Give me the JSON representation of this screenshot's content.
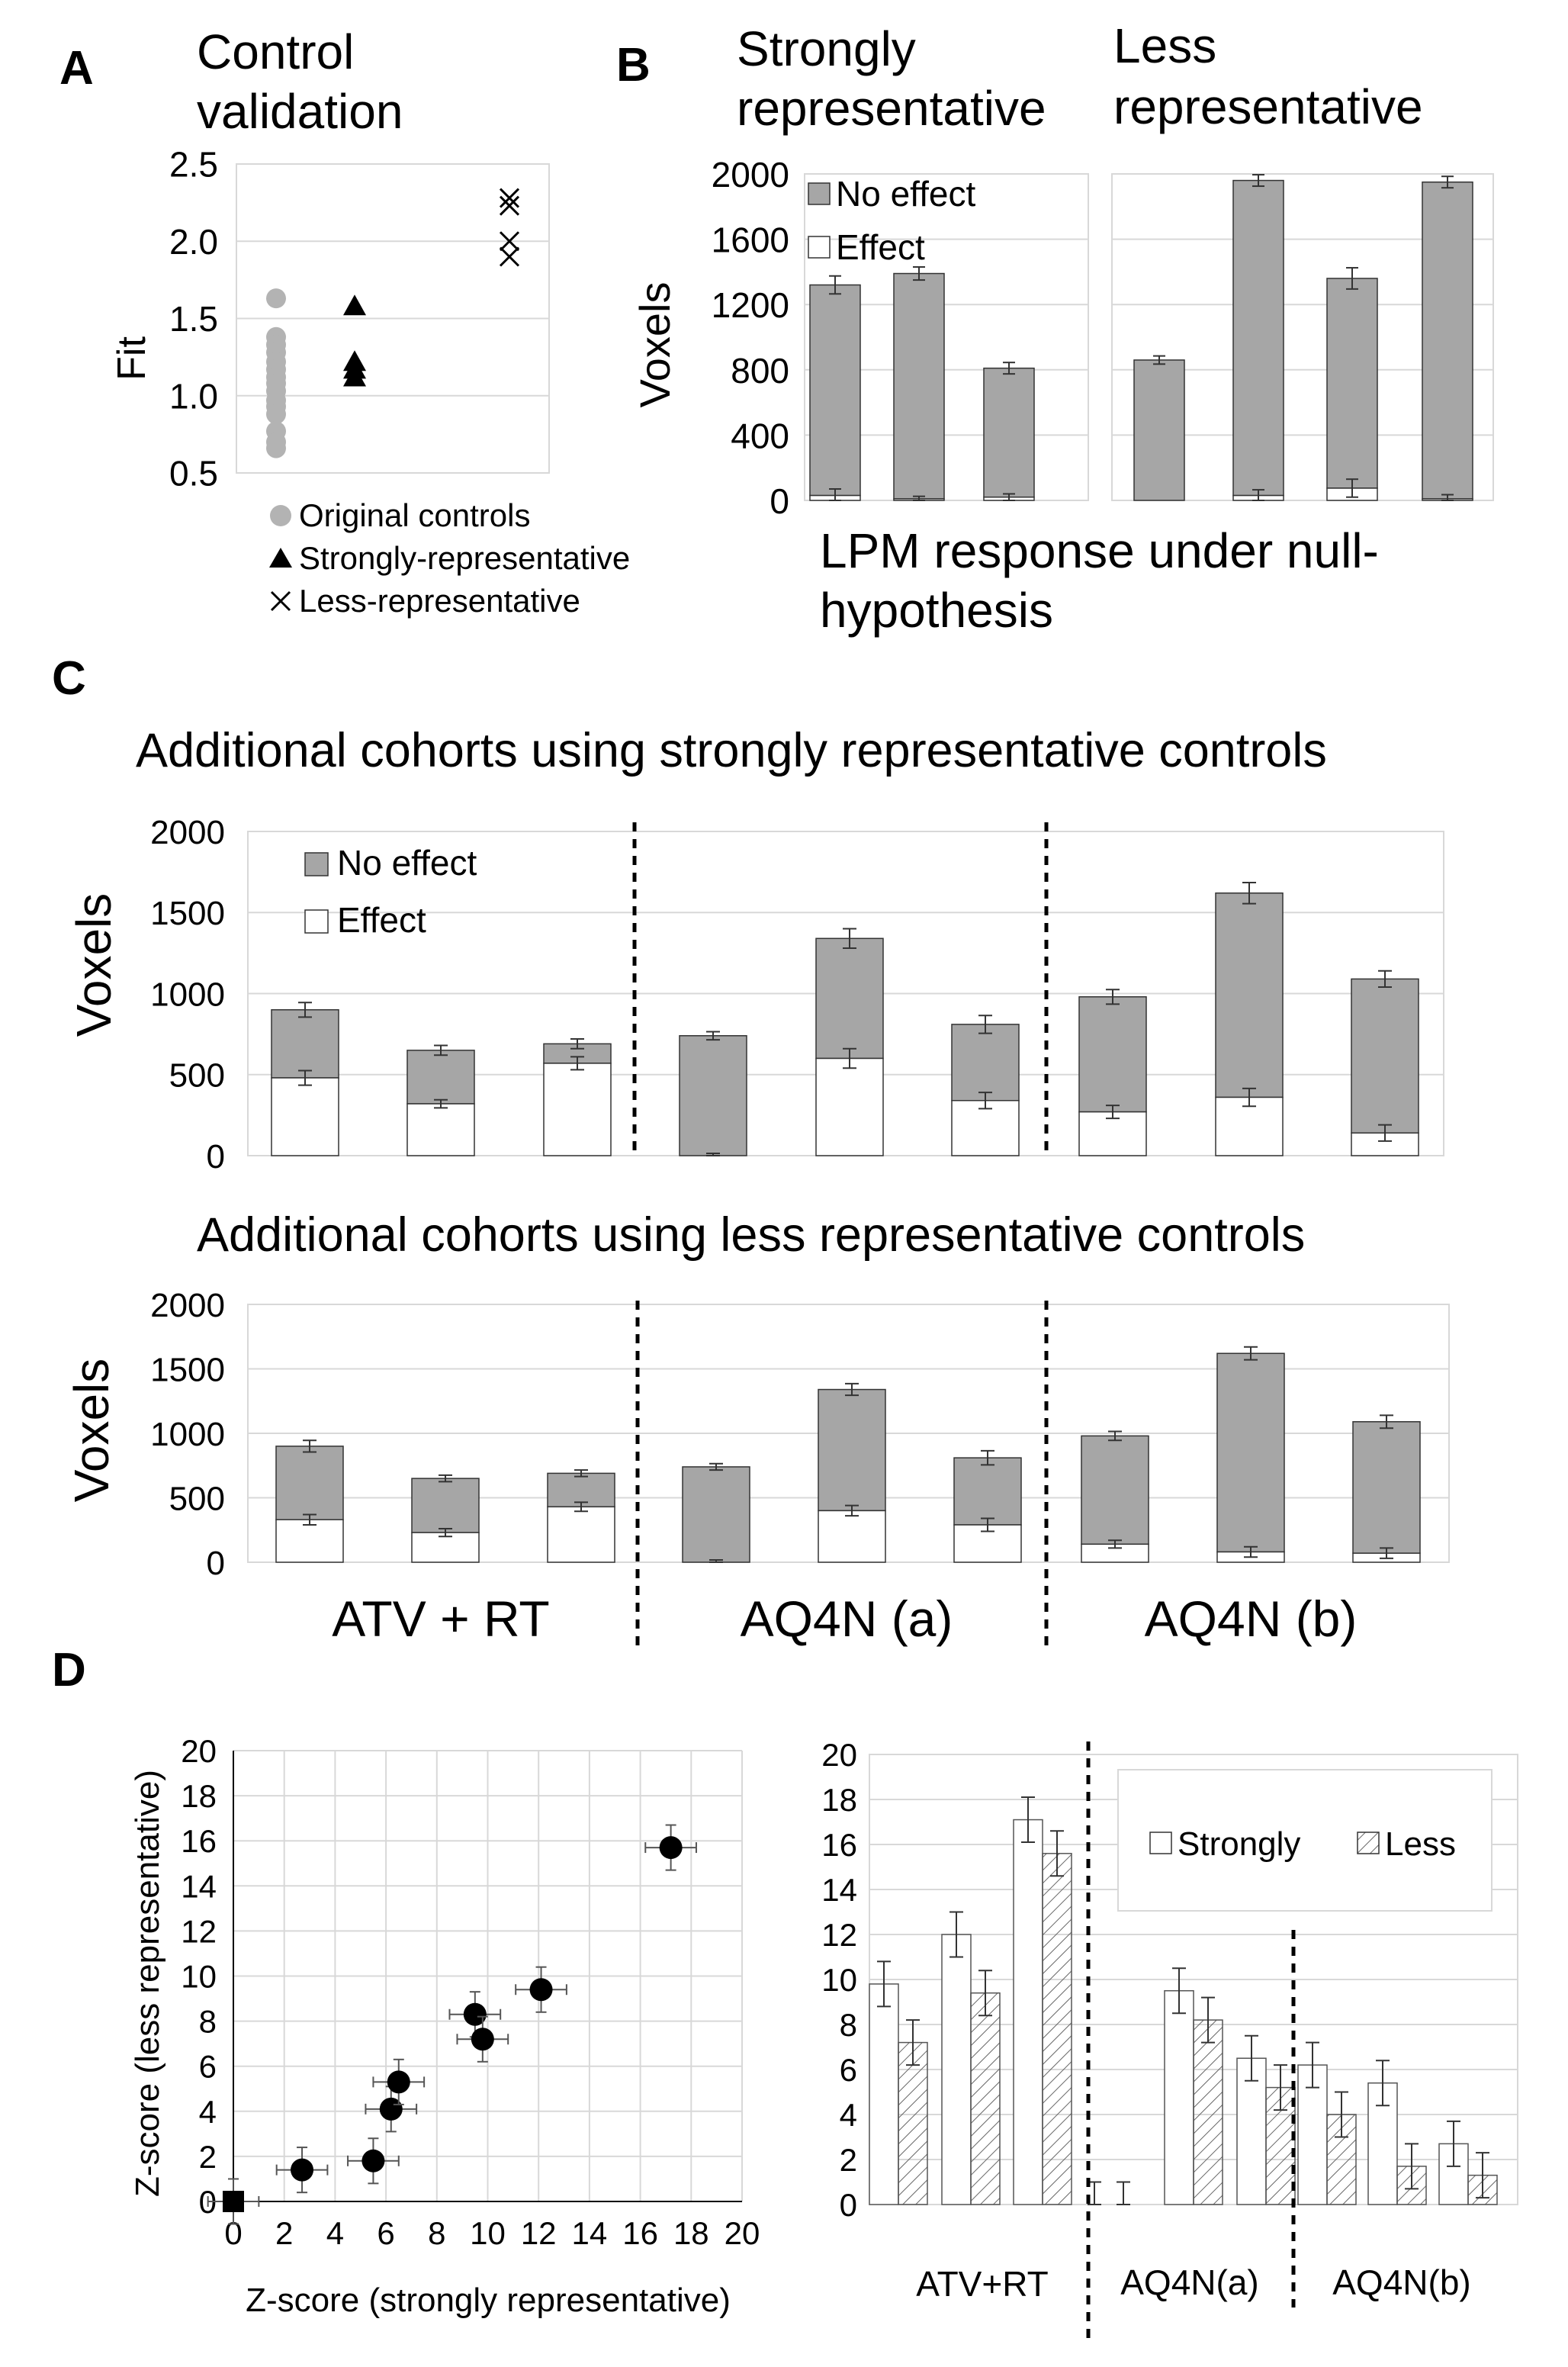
{
  "figure": {
    "panel_labels": {
      "a": "A",
      "b": "B",
      "c": "C",
      "d": "D"
    }
  },
  "chart_data": [
    {
      "id": "A",
      "type": "scatter",
      "title_lines": [
        "Control",
        "validation"
      ],
      "ylabel": "Fit",
      "xlabel": "",
      "ylim": [
        0.5,
        2.5
      ],
      "yticks": [
        0.5,
        1.0,
        1.5,
        2.0,
        2.5
      ],
      "ytick_labels": [
        "0.5",
        "1.0",
        "1.5",
        "2.0",
        "2.5"
      ],
      "grid": true,
      "series": [
        {
          "name": "Original controls",
          "marker": "circle",
          "color": "#b3b3b3",
          "x": 1,
          "values": [
            1.63,
            1.38,
            1.33,
            1.28,
            1.22,
            1.17,
            1.12,
            1.08,
            1.03,
            0.97,
            0.93,
            0.88,
            0.77,
            0.7,
            0.66
          ]
        },
        {
          "name": "Strongly-representative",
          "marker": "triangle",
          "color": "#000000",
          "x": 2,
          "values": [
            1.58,
            1.22,
            1.17,
            1.12
          ]
        },
        {
          "name": "Less-representative",
          "marker": "x",
          "color": "#000000",
          "x": 3,
          "values": [
            2.28,
            2.23,
            2.0,
            1.9
          ]
        }
      ],
      "legend": [
        "Original controls",
        "Strongly-representative",
        "Less-representative"
      ]
    },
    {
      "id": "B",
      "type": "bar",
      "stacked": true,
      "subtitles": [
        [
          "Strongly",
          "representative"
        ],
        [
          "Less",
          "representative"
        ]
      ],
      "ylabel": "Voxels",
      "xlabel_lines": [
        "LPM response under null-",
        "hypothesis"
      ],
      "ylim": [
        0,
        2000
      ],
      "yticks": [
        0,
        400,
        800,
        1200,
        1600,
        2000
      ],
      "ytick_labels": [
        "0",
        "400",
        "800",
        "1200",
        "1600",
        "2000"
      ],
      "legend": [
        "No effect",
        "Effect"
      ],
      "groups": [
        {
          "name": "Strongly representative",
          "effect": [
            30,
            10,
            20
          ],
          "total": [
            1320,
            1390,
            810
          ],
          "total_err": [
            55,
            40,
            35
          ],
          "effect_err": [
            40,
            15,
            20
          ]
        },
        {
          "name": "Less representative",
          "effect": [
            0,
            30,
            75,
            10
          ],
          "total": [
            860,
            1960,
            1360,
            1950
          ],
          "total_err": [
            25,
            35,
            65,
            35
          ],
          "effect_err": [
            0,
            35,
            55,
            25
          ]
        }
      ]
    },
    {
      "id": "C-top",
      "type": "bar",
      "stacked": true,
      "title": "Additional cohorts using strongly representative controls",
      "ylabel": "Voxels",
      "ylim": [
        0,
        2000
      ],
      "yticks": [
        0,
        500,
        1000,
        1500,
        2000
      ],
      "ytick_labels": [
        "0",
        "500",
        "1000",
        "1500",
        "2000"
      ],
      "legend": [
        "No effect",
        "Effect"
      ],
      "effect": [
        480,
        320,
        570,
        0,
        600,
        340,
        270,
        360,
        140
      ],
      "total": [
        900,
        650,
        690,
        740,
        1340,
        810,
        980,
        1620,
        1090
      ],
      "total_err": [
        45,
        30,
        30,
        25,
        60,
        55,
        45,
        65,
        50
      ],
      "effect_err": [
        45,
        25,
        40,
        0,
        60,
        50,
        40,
        55,
        50
      ]
    },
    {
      "id": "C-bottom",
      "type": "bar",
      "stacked": true,
      "title": "Additional cohorts using less representative controls",
      "ylabel": "Voxels",
      "ylim": [
        0,
        2000
      ],
      "yticks": [
        0,
        500,
        1000,
        1500,
        2000
      ],
      "ytick_labels": [
        "0",
        "500",
        "1000",
        "1500",
        "2000"
      ],
      "group_labels": [
        "ATV + RT",
        "AQ4N (a)",
        "AQ4N (b)"
      ],
      "effect": [
        330,
        230,
        430,
        0,
        400,
        290,
        140,
        80,
        70
      ],
      "total": [
        900,
        650,
        690,
        740,
        1340,
        810,
        980,
        1620,
        1090
      ],
      "total_err": [
        45,
        25,
        25,
        25,
        45,
        55,
        35,
        50,
        50
      ],
      "effect_err": [
        40,
        30,
        35,
        0,
        40,
        50,
        30,
        40,
        40
      ]
    },
    {
      "id": "D-scatter",
      "type": "scatter",
      "xlabel": "Z-score (strongly representative)",
      "ylabel": "Z-score (less representative)",
      "xlim": [
        0,
        20
      ],
      "ylim": [
        0,
        20
      ],
      "xticks": [
        0,
        2,
        4,
        6,
        8,
        10,
        12,
        14,
        16,
        18,
        20
      ],
      "xtick_labels": [
        "0",
        "2",
        "4",
        "6",
        "8",
        "10",
        "12",
        "14",
        "16",
        "18",
        "20"
      ],
      "yticks": [
        0,
        2,
        4,
        6,
        8,
        10,
        12,
        14,
        16,
        18,
        20
      ],
      "ytick_labels": [
        "0",
        "2",
        "4",
        "6",
        "8",
        "10",
        "12",
        "14",
        "16",
        "18",
        "20"
      ],
      "grid": true,
      "points": [
        {
          "x": 0,
          "y": 0,
          "xerr": 1.0,
          "yerr": 1.0,
          "marker": "square"
        },
        {
          "x": 2.7,
          "y": 1.4,
          "xerr": 1.0,
          "yerr": 1.0,
          "marker": "circle"
        },
        {
          "x": 5.5,
          "y": 1.8,
          "xerr": 1.0,
          "yerr": 1.0,
          "marker": "circle"
        },
        {
          "x": 6.2,
          "y": 4.1,
          "xerr": 1.0,
          "yerr": 1.0,
          "marker": "circle"
        },
        {
          "x": 6.5,
          "y": 5.3,
          "xerr": 1.0,
          "yerr": 1.0,
          "marker": "circle"
        },
        {
          "x": 9.5,
          "y": 8.3,
          "xerr": 1.0,
          "yerr": 1.0,
          "marker": "circle"
        },
        {
          "x": 9.8,
          "y": 7.2,
          "xerr": 1.0,
          "yerr": 1.0,
          "marker": "circle"
        },
        {
          "x": 12.1,
          "y": 9.4,
          "xerr": 1.0,
          "yerr": 1.0,
          "marker": "circle"
        },
        {
          "x": 17.2,
          "y": 15.7,
          "xerr": 1.0,
          "yerr": 1.0,
          "marker": "circle"
        }
      ]
    },
    {
      "id": "D-bars",
      "type": "bar",
      "ylim": [
        0,
        20
      ],
      "yticks": [
        0,
        2,
        4,
        6,
        8,
        10,
        12,
        14,
        16,
        18,
        20
      ],
      "ytick_labels": [
        "0",
        "2",
        "4",
        "6",
        "8",
        "10",
        "12",
        "14",
        "16",
        "18",
        "20"
      ],
      "legend": [
        "Strongly",
        "Less"
      ],
      "group_labels": [
        "ATV+RT",
        "AQ4N(a)",
        "AQ4N(b)"
      ],
      "series": [
        {
          "name": "Strongly",
          "fill": "open",
          "values": [
            9.8,
            12.0,
            17.1,
            0,
            9.5,
            6.5,
            6.2,
            5.4,
            2.7
          ],
          "err": [
            1.0,
            1.0,
            1.0,
            1.0,
            1.0,
            1.0,
            1.0,
            1.0,
            1.0
          ]
        },
        {
          "name": "Less",
          "fill": "hatched",
          "values": [
            7.2,
            9.4,
            15.6,
            0,
            8.2,
            5.2,
            4.0,
            1.7,
            1.3
          ],
          "err": [
            1.0,
            1.0,
            1.0,
            1.0,
            1.0,
            1.0,
            1.0,
            1.0,
            1.0
          ]
        }
      ]
    }
  ]
}
